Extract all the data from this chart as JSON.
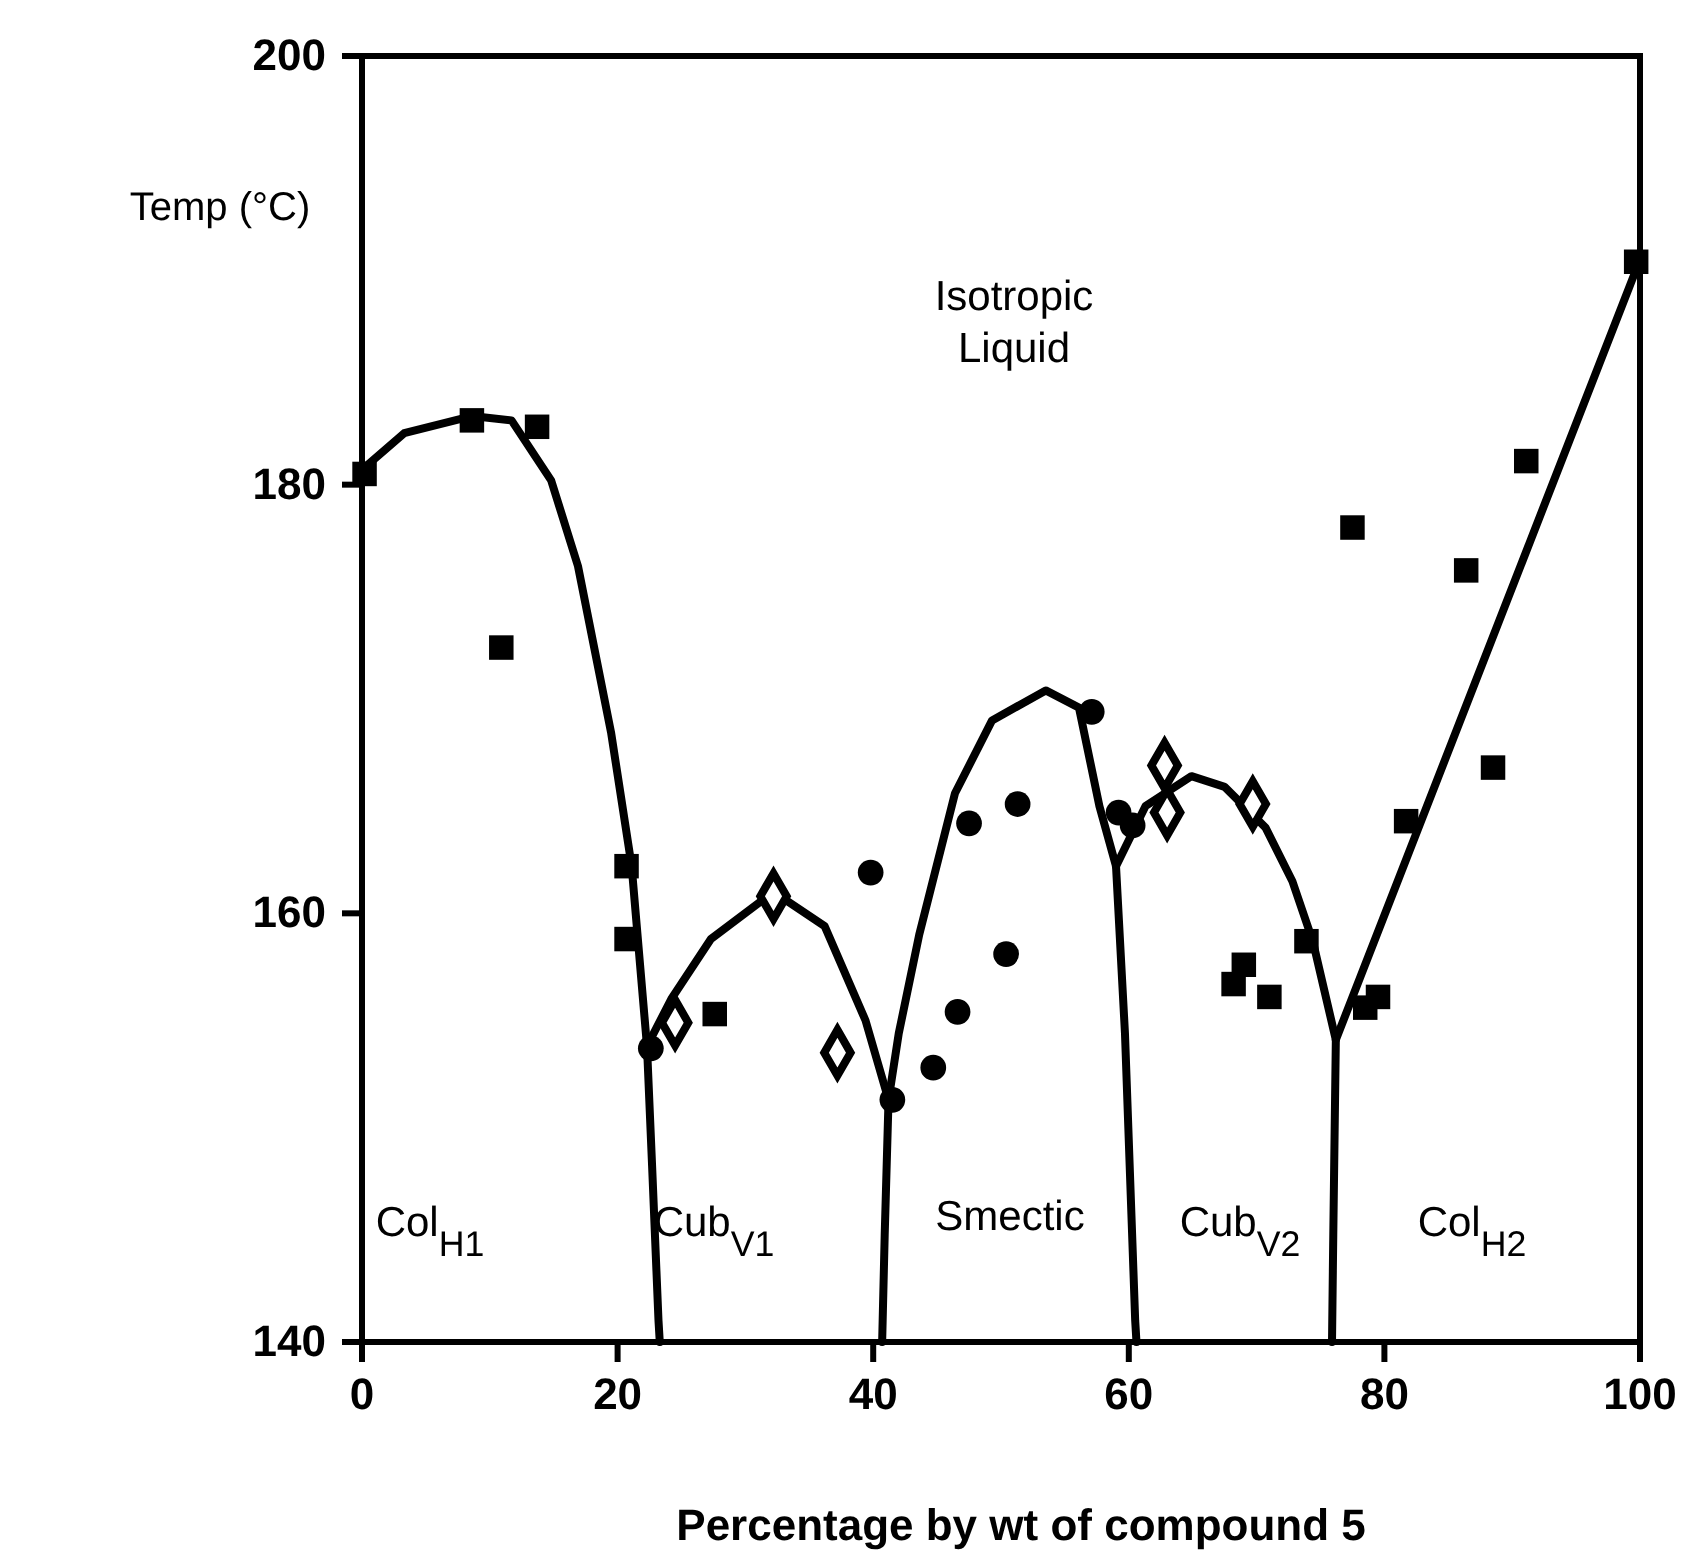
{
  "chart_data": {
    "type": "scatter",
    "xlabel": "Percentage by wt of compound 5",
    "ylabel": "Temp (°C)",
    "xlim": [
      0,
      100
    ],
    "ylim": [
      140,
      200
    ],
    "xticks": [
      0,
      20,
      40,
      60,
      80,
      100
    ],
    "yticks": [
      140,
      160,
      180,
      200
    ],
    "grid": false,
    "annotations": [
      "Isotropic\nLiquid",
      "Col$_{H1}$",
      "Cub$_{V1}$",
      "Smectic",
      "Cub$_{V2}$",
      "Col$_{H2}$"
    ],
    "series": [
      {
        "type": "line",
        "color": "#000000",
        "marker": "none",
        "line_style": "solid",
        "x": [
          0.2,
          3.3,
          8.6,
          11.7,
          14.8,
          16.9,
          19.5,
          21.1,
          22.3,
          22.7,
          23.2,
          23.3
        ],
        "values": [
          180.8,
          182.4,
          183.2,
          183,
          180.2,
          176.2,
          168.4,
          162.2,
          153.8,
          148.2,
          141,
          140
        ]
      },
      {
        "type": "line",
        "color": "#000000",
        "marker": "none",
        "line_style": "solid",
        "x": [
          22.3,
          24.2,
          27.3,
          32.2,
          36.2,
          39.4,
          41.2
        ],
        "values": [
          153.8,
          156,
          158.8,
          161,
          159.4,
          155,
          151.3
        ]
      },
      {
        "type": "line",
        "color": "#000000",
        "marker": "none",
        "line_style": "solid",
        "x": [
          41.2,
          40.9,
          40.7
        ],
        "values": [
          151.3,
          145,
          140
        ]
      },
      {
        "type": "line",
        "color": "#000000",
        "marker": "none",
        "line_style": "solid",
        "x": [
          41.2,
          42,
          43.6,
          46.4,
          49.3,
          53.5,
          56.1,
          57.7,
          59,
          59.7,
          60.5,
          60.6
        ],
        "values": [
          151.3,
          154.4,
          159,
          165.6,
          169,
          170.4,
          169.6,
          165,
          162.2,
          154.4,
          141,
          140
        ]
      },
      {
        "type": "line",
        "color": "#000000",
        "marker": "none",
        "line_style": "solid",
        "x": [
          59,
          61.3,
          64.9,
          67.5,
          70.7,
          72.8,
          74.4,
          76.2,
          76,
          75.9
        ],
        "values": [
          162.2,
          165,
          166.4,
          165.9,
          164,
          161.5,
          158.7,
          154.1,
          145,
          140
        ]
      },
      {
        "type": "line",
        "color": "#000000",
        "marker": "none",
        "line_style": "solid",
        "x": [
          76.2,
          100
        ],
        "values": [
          154.1,
          190.5
        ]
      },
      {
        "color": "#000000",
        "marker": "square",
        "x": [
          0.2,
          8.6,
          13.7,
          10.9,
          20.7,
          20.7,
          27.6,
          68.2,
          69,
          71,
          73.9,
          78.5,
          79.5,
          81.7,
          77.5,
          86.4,
          88.5,
          91.1,
          99.7
        ],
        "values": [
          180.5,
          183,
          182.7,
          172.4,
          162.2,
          158.8,
          155.3,
          156.7,
          157.6,
          156.1,
          158.7,
          155.6,
          156.1,
          164.3,
          178,
          176,
          166.8,
          181.1,
          190.4
        ]
      },
      {
        "color": "#000000",
        "marker": "circle",
        "x": [
          22.6,
          39.8,
          41.5,
          44.7,
          46.6,
          50.4,
          47.5,
          51.3,
          57.1,
          59.2,
          60.3
        ],
        "values": [
          153.7,
          161.9,
          151.3,
          152.8,
          155.4,
          158.1,
          164.2,
          165.1,
          169.4,
          164.7,
          164.1
        ]
      },
      {
        "color": "#000000",
        "marker": "diamond",
        "x": [
          24.5,
          32.2,
          37.2,
          62.8,
          63,
          69.7
        ],
        "values": [
          154.9,
          160.8,
          153.5,
          166.9,
          164.7,
          165.1
        ]
      }
    ]
  }
}
